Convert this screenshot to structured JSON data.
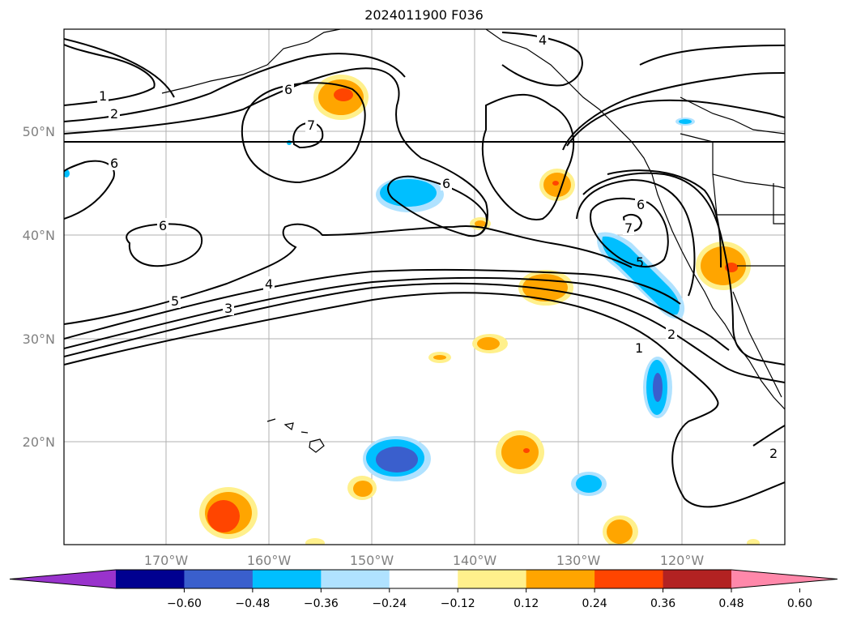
{
  "title": "2024011900 F036",
  "map": {
    "lon_labels": [
      "170°W",
      "160°W",
      "150°W",
      "140°W",
      "130°W",
      "120°W"
    ],
    "lat_labels": [
      "50°N",
      "40°N",
      "30°N",
      "20°N"
    ],
    "contour_labels": [
      "1",
      "2",
      "6",
      "7",
      "6",
      "6",
      "6",
      "6",
      "7",
      "5",
      "4",
      "3",
      "5",
      "2",
      "1",
      "4",
      "2"
    ]
  },
  "colorbar": {
    "ticks": [
      "−0.60",
      "−0.48",
      "−0.36",
      "−0.24",
      "−0.12",
      "0.12",
      "0.24",
      "0.36",
      "0.48",
      "0.60"
    ],
    "colors": [
      "#9933cc",
      "#000090",
      "#3a5fcd",
      "#00bfff",
      "#b0e2ff",
      "#ffffff",
      "#fff08c",
      "#ffa500",
      "#ff4500",
      "#b22222",
      "#ff88aa"
    ]
  }
}
